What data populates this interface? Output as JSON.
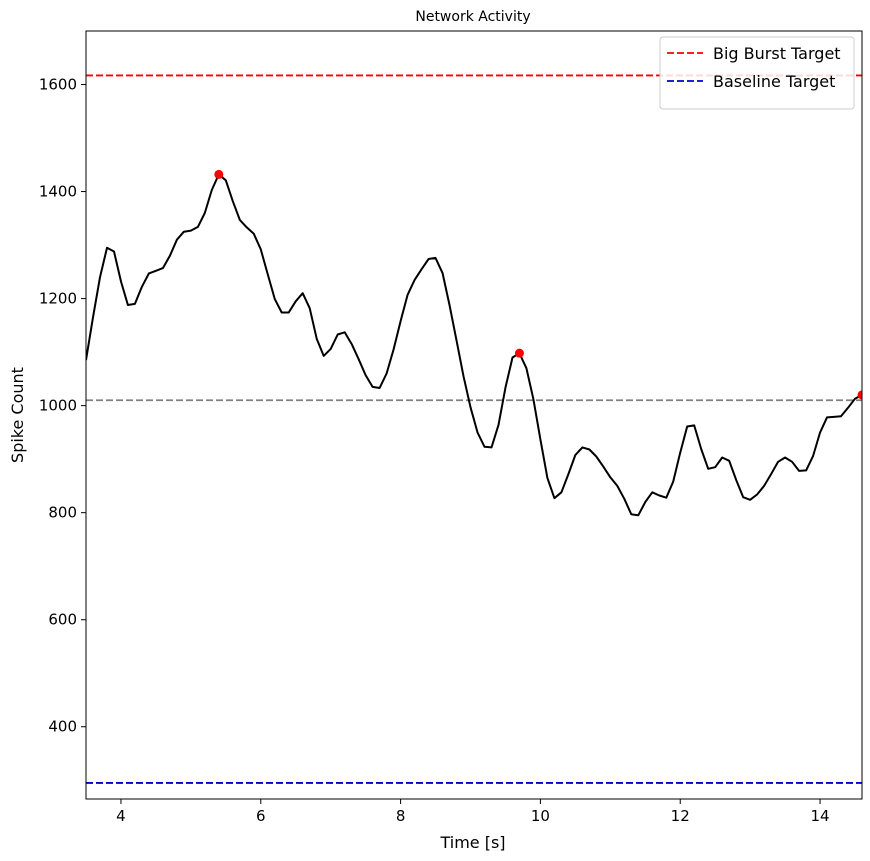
{
  "chart_data": {
    "type": "line",
    "title": "Network Activity",
    "xlabel": "Time [s]",
    "ylabel": "Spike Count",
    "xlim": [
      3.5,
      14.6
    ],
    "ylim": [
      265,
      1700
    ],
    "xticks": [
      4,
      6,
      8,
      10,
      12,
      14
    ],
    "yticks": [
      400,
      600,
      800,
      1000,
      1200,
      1400,
      1600
    ],
    "grid": false,
    "legend_position": "top-right",
    "series": [
      {
        "name": "",
        "color": "#000000",
        "x": [
          3.5,
          3.6,
          3.7,
          3.8,
          3.9,
          4.0,
          4.1,
          4.2,
          4.3,
          4.4,
          4.5,
          4.6,
          4.7,
          4.8,
          4.9,
          5.0,
          5.1,
          5.2,
          5.3,
          5.4,
          5.5,
          5.6,
          5.7,
          5.8,
          5.9,
          6.0,
          6.1,
          6.2,
          6.3,
          6.4,
          6.5,
          6.6,
          6.7,
          6.8,
          6.9,
          7.0,
          7.1,
          7.2,
          7.3,
          7.4,
          7.5,
          7.6,
          7.7,
          7.8,
          7.9,
          8.0,
          8.1,
          8.2,
          8.3,
          8.4,
          8.5,
          8.6,
          8.7,
          8.8,
          8.9,
          9.0,
          9.1,
          9.2,
          9.3,
          9.4,
          9.5,
          9.6,
          9.7,
          9.8,
          9.9,
          10.0,
          10.1,
          10.2,
          10.3,
          10.4,
          10.5,
          10.6,
          10.7,
          10.8,
          10.9,
          11.0,
          11.1,
          11.2,
          11.3,
          11.4,
          11.5,
          11.6,
          11.7,
          11.8,
          11.9,
          12.0,
          12.1,
          12.2,
          12.3,
          12.4,
          12.5,
          12.6,
          12.7,
          12.8,
          12.9,
          13.0,
          13.1,
          13.2,
          13.3,
          13.4,
          13.5,
          13.6,
          13.7,
          13.8,
          13.9,
          14.0,
          14.1,
          14.2,
          14.3,
          14.4,
          14.5,
          14.6
        ],
        "y": [
          1085,
          1165,
          1240,
          1295,
          1288,
          1232,
          1188,
          1190,
          1222,
          1247,
          1252,
          1257,
          1280,
          1310,
          1325,
          1327,
          1334,
          1360,
          1403,
          1432,
          1421,
          1382,
          1347,
          1333,
          1321,
          1292,
          1245,
          1199,
          1174,
          1174,
          1195,
          1210,
          1182,
          1125,
          1093,
          1106,
          1133,
          1137,
          1115,
          1087,
          1057,
          1035,
          1033,
          1060,
          1105,
          1158,
          1207,
          1235,
          1255,
          1274,
          1276,
          1248,
          1188,
          1122,
          1055,
          997,
          950,
          923,
          922,
          964,
          1034,
          1090,
          1098,
          1070,
          1012,
          937,
          865,
          827,
          838,
          872,
          908,
          922,
          918,
          905,
          886,
          866,
          850,
          826,
          797,
          795,
          820,
          838,
          832,
          828,
          858,
          912,
          961,
          963,
          919,
          882,
          885,
          903,
          897,
          861,
          829,
          824,
          834,
          850,
          872,
          895,
          903,
          895,
          878,
          879,
          906,
          950,
          978,
          979,
          980,
          996,
          1013,
          1020
        ]
      }
    ],
    "peaks": [
      {
        "x": 5.4,
        "y": 1432
      },
      {
        "x": 9.7,
        "y": 1098
      },
      {
        "x": 14.6,
        "y": 1020
      }
    ],
    "hlines": [
      {
        "name": "Big Burst Target",
        "y": 1617,
        "color": "#ff0000",
        "style": "dashed"
      },
      {
        "name": "Baseline Target",
        "y": 295,
        "color": "#0000cc",
        "style": "dashed"
      },
      {
        "name": "",
        "y": 1010,
        "color": "#808080",
        "style": "dashed"
      }
    ]
  }
}
